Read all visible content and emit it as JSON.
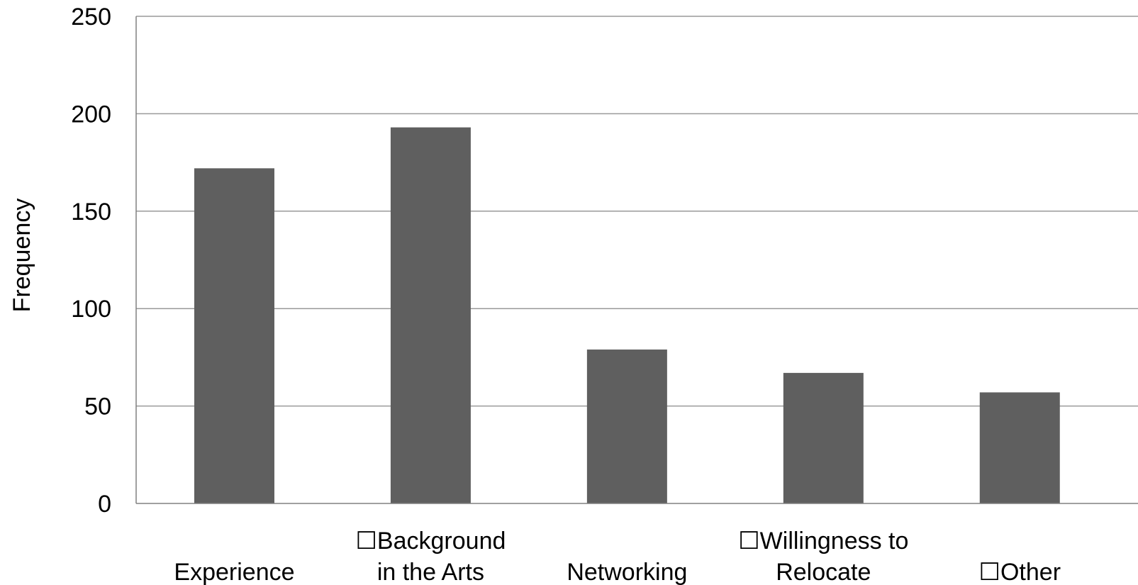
{
  "chart_data": {
    "type": "bar",
    "title": "",
    "xlabel": "",
    "ylabel": "Frequency",
    "categories": [
      [
        "Experience"
      ],
      [
        "☐Background",
        "in the Arts"
      ],
      [
        "Networking"
      ],
      [
        "☐Willingness to",
        "Relocate"
      ],
      [
        "☐Other"
      ]
    ],
    "values": [
      172,
      193,
      79,
      67,
      57
    ],
    "ylim": [
      0,
      250
    ],
    "yticks": [
      0,
      50,
      100,
      150,
      200,
      250
    ],
    "grid": true,
    "legend": "none",
    "colors": {
      "bar": "#5f5f5f",
      "grid": "#9a9a9a",
      "axis": "#808080",
      "text": "#000000"
    }
  }
}
